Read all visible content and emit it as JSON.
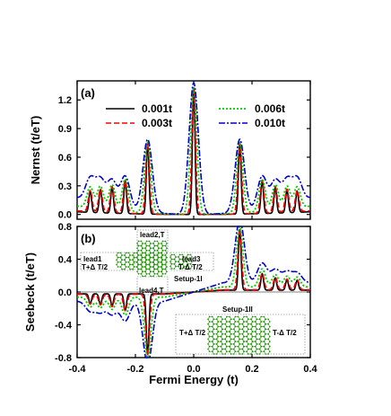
{
  "chart_data": [
    {
      "panel": "(a)",
      "type": "line",
      "xlabel": "",
      "ylabel": "Nernst (t/eT)",
      "xlim": [
        -0.4,
        0.4
      ],
      "ylim": [
        -0.05,
        1.4
      ],
      "yticks": [
        "0.0",
        "0.3",
        "0.6",
        "0.9",
        "1.2"
      ],
      "legend": [
        "0.001t",
        "0.003t",
        "0.006t",
        "0.010t"
      ],
      "series": [
        {
          "name": "0.001t",
          "color": "#000000",
          "dash": "solid",
          "peaks": [
            [
              -0.355,
              0.22
            ],
            [
              -0.32,
              0.24
            ],
            [
              -0.28,
              0.27
            ],
            [
              -0.235,
              0.34
            ],
            [
              -0.158,
              0.74
            ],
            [
              0.0,
              1.33
            ],
            [
              0.158,
              0.74
            ],
            [
              0.235,
              0.34
            ],
            [
              0.28,
              0.27
            ],
            [
              0.32,
              0.24
            ],
            [
              0.355,
              0.22
            ]
          ]
        },
        {
          "name": "0.003t",
          "color": "#ff0000",
          "dash": "dashed",
          "peaks": [
            [
              -0.355,
              0.22
            ],
            [
              -0.32,
              0.24
            ],
            [
              -0.28,
              0.27
            ],
            [
              -0.235,
              0.34
            ],
            [
              -0.158,
              0.74
            ],
            [
              0.0,
              1.33
            ],
            [
              0.158,
              0.74
            ],
            [
              0.235,
              0.34
            ],
            [
              0.28,
              0.27
            ],
            [
              0.32,
              0.24
            ],
            [
              0.355,
              0.22
            ]
          ]
        },
        {
          "name": "0.006t",
          "color": "#00cc00",
          "dash": "dotted",
          "peaks": [
            [
              -0.355,
              0.22
            ],
            [
              -0.32,
              0.24
            ],
            [
              -0.28,
              0.27
            ],
            [
              -0.235,
              0.34
            ],
            [
              -0.158,
              0.74
            ],
            [
              0.0,
              1.33
            ],
            [
              0.158,
              0.74
            ],
            [
              0.235,
              0.34
            ],
            [
              0.28,
              0.27
            ],
            [
              0.32,
              0.24
            ],
            [
              0.355,
              0.22
            ]
          ]
        },
        {
          "name": "0.010t",
          "color": "#0000cc",
          "dash": "dashdot",
          "peaks": [
            [
              -0.355,
              0.24
            ],
            [
              -0.32,
              0.25
            ],
            [
              -0.28,
              0.27
            ],
            [
              -0.235,
              0.34
            ],
            [
              -0.158,
              0.76
            ],
            [
              0.0,
              1.38
            ],
            [
              0.158,
              0.76
            ],
            [
              0.235,
              0.34
            ],
            [
              0.28,
              0.27
            ],
            [
              0.32,
              0.25
            ],
            [
              0.355,
              0.24
            ]
          ]
        }
      ]
    },
    {
      "panel": "(b)",
      "type": "line",
      "xlabel": "Fermi Energy (t)",
      "ylabel": "Seebeck (t/eT)",
      "xlim": [
        -0.4,
        0.4
      ],
      "ylim": [
        -0.8,
        0.8
      ],
      "xticks": [
        "-0.4",
        "-0.2",
        "0.0",
        "0.2",
        "0.4"
      ],
      "yticks": [
        "-0.8",
        "-0.4",
        "0.0",
        "0.4",
        "0.8"
      ],
      "series": [
        {
          "name": "0.001t",
          "color": "#000000",
          "dash": "solid",
          "peaks": [
            [
              -0.355,
              -0.12
            ],
            [
              -0.32,
              -0.13
            ],
            [
              -0.28,
              -0.15
            ],
            [
              -0.235,
              -0.2
            ],
            [
              -0.158,
              -0.74
            ],
            [
              0.158,
              0.74
            ],
            [
              0.235,
              0.2
            ],
            [
              0.28,
              0.15
            ],
            [
              0.32,
              0.13
            ],
            [
              0.355,
              0.12
            ]
          ]
        },
        {
          "name": "0.003t",
          "color": "#ff0000",
          "dash": "dashed",
          "peaks": [
            [
              -0.355,
              -0.12
            ],
            [
              -0.32,
              -0.13
            ],
            [
              -0.28,
              -0.15
            ],
            [
              -0.235,
              -0.2
            ],
            [
              -0.158,
              -0.74
            ],
            [
              0.158,
              0.74
            ],
            [
              0.235,
              0.2
            ],
            [
              0.28,
              0.15
            ],
            [
              0.32,
              0.13
            ],
            [
              0.355,
              0.12
            ]
          ]
        },
        {
          "name": "0.006t",
          "color": "#00cc00",
          "dash": "dotted",
          "peaks": [
            [
              -0.355,
              -0.12
            ],
            [
              -0.32,
              -0.13
            ],
            [
              -0.28,
              -0.15
            ],
            [
              -0.235,
              -0.22
            ],
            [
              -0.158,
              -0.74
            ],
            [
              0.158,
              0.74
            ],
            [
              0.235,
              0.22
            ],
            [
              0.28,
              0.15
            ],
            [
              0.32,
              0.13
            ],
            [
              0.355,
              0.12
            ]
          ]
        },
        {
          "name": "0.010t",
          "color": "#0000cc",
          "dash": "dashdot",
          "peaks": [
            [
              -0.355,
              -0.12
            ],
            [
              -0.32,
              -0.13
            ],
            [
              -0.28,
              -0.16
            ],
            [
              -0.235,
              -0.24
            ],
            [
              -0.158,
              -0.76
            ],
            [
              0.158,
              0.76
            ],
            [
              0.235,
              0.24
            ],
            [
              0.28,
              0.16
            ],
            [
              0.32,
              0.13
            ],
            [
              0.355,
              0.12
            ]
          ]
        }
      ],
      "insets": {
        "setup1": {
          "lead1": "lead1",
          "lead1_temp": "T+Δ T/2",
          "lead2": "lead2,T",
          "lead3": "lead3",
          "lead3_temp": "T-Δ T/2",
          "lead4": "lead4,T",
          "label": "Setup-1I"
        },
        "setup2": {
          "label": "Setup-1II",
          "left_temp": "T+Δ T/2",
          "right_temp": "T-Δ T/2"
        }
      }
    }
  ]
}
